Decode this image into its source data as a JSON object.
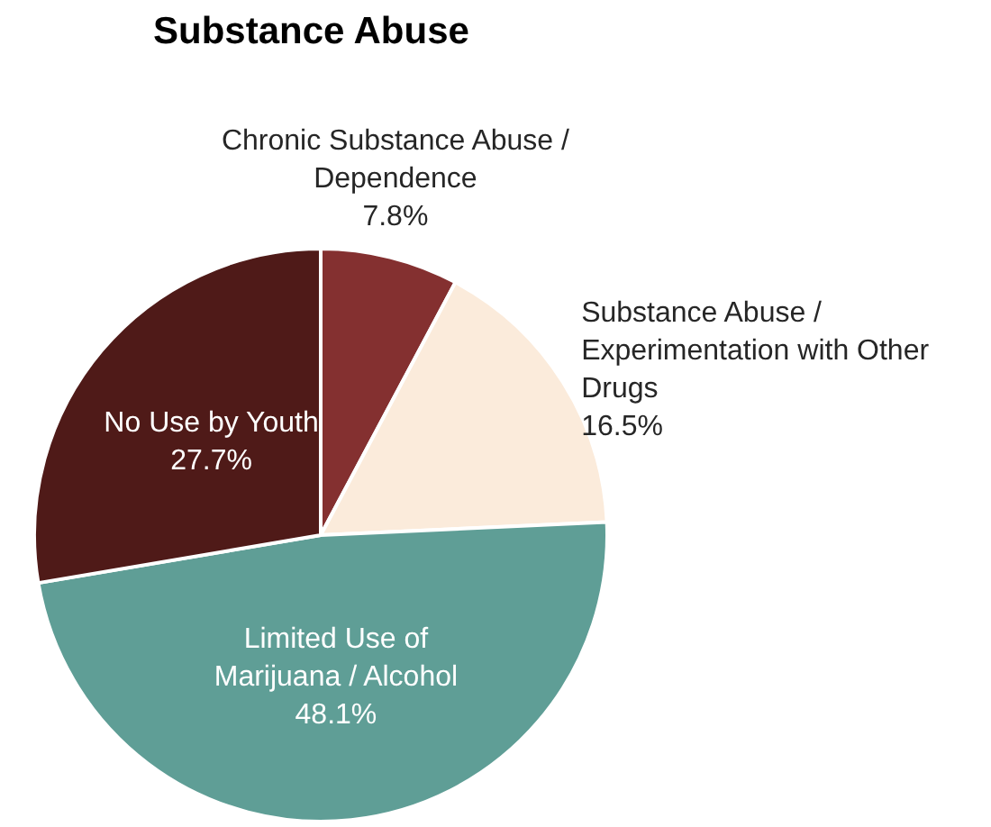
{
  "chart_data": {
    "type": "pie",
    "title": "Substance Abuse",
    "categories": [
      "Chronic Substance Abuse / Dependence",
      "Substance Abuse / Experimentation with Other Drugs",
      "Limited Use of Marijuana / Alcohol",
      "No Use by Youth"
    ],
    "values": [
      7.8,
      16.5,
      48.1,
      27.7
    ],
    "value_labels": [
      "7.8%",
      "16.5%",
      "48.1%",
      "27.7%"
    ],
    "colors": [
      "#843030",
      "#fbebdb",
      "#5f9e96",
      "#4f1a18"
    ],
    "legend": false
  }
}
